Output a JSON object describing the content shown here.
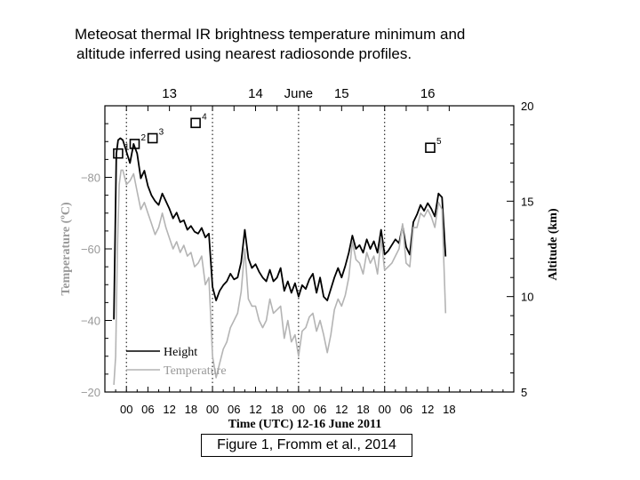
{
  "title_lines": [
    "Meteosat thermal IR brightness temperature minimum and",
    "altitude inferred using nearest radiosonde profiles."
  ],
  "caption": "Figure 1, Fromm et al., 2014",
  "colors": {
    "height": "#000000",
    "temperature": "#b4b4b4",
    "frame": "#000000"
  },
  "chart_data": {
    "type": "line",
    "xlabel": "Time (UTC) 12-16 June 2011",
    "xlim": [
      -6,
      108
    ],
    "x_tick_labels": [
      "00",
      "06",
      "12",
      "18",
      "00",
      "06",
      "12",
      "18",
      "00",
      "06",
      "12",
      "18",
      "00",
      "06",
      "12",
      "18"
    ],
    "x_ticks": [
      0,
      6,
      12,
      18,
      24,
      30,
      36,
      42,
      48,
      54,
      60,
      66,
      72,
      78,
      84,
      90
    ],
    "top_labels": [
      {
        "text": "13",
        "x": 12
      },
      {
        "text": "14",
        "x": 36
      },
      {
        "text": "June",
        "x": 48
      },
      {
        "text": "15",
        "x": 60
      },
      {
        "text": "16",
        "x": 84
      }
    ],
    "day_boundaries": [
      0,
      24,
      48,
      72
    ],
    "left_axis": {
      "label": "Temperature (ºC)",
      "lim": [
        -20,
        -100
      ],
      "ticks": [
        -20,
        -40,
        -60,
        -80
      ],
      "tick_labels": [
        "−20",
        "−40",
        "−60",
        "−80"
      ]
    },
    "right_axis": {
      "label": "Altitude (km)",
      "lim": [
        5,
        20
      ],
      "ticks": [
        5,
        10,
        15,
        20
      ],
      "tick_labels": [
        "5",
        "10",
        "15",
        "20"
      ]
    },
    "legend": {
      "placement": "bottom-left",
      "entries": [
        "Height",
        "Temperature"
      ]
    },
    "markers": [
      {
        "label": "1",
        "x": -2.3,
        "altitude": 17.5
      },
      {
        "label": "2",
        "x": 2.3,
        "altitude": 18.0
      },
      {
        "label": "3",
        "x": 7.3,
        "altitude": 18.3
      },
      {
        "label": "4",
        "x": 19.3,
        "altitude": 19.1
      },
      {
        "label": "5",
        "x": 84.7,
        "altitude": 17.8
      }
    ],
    "series": [
      {
        "name": "Height",
        "axis": "right",
        "x": [
          -3.5,
          -3.2,
          -2.8,
          -2.3,
          -1.7,
          -1,
          0,
          1,
          2,
          3,
          4,
          5,
          6,
          7,
          8,
          9,
          10,
          11,
          12,
          13,
          14,
          15,
          16,
          17,
          18,
          19,
          20,
          21,
          22,
          23,
          24,
          25,
          26,
          27,
          28,
          29,
          30,
          31,
          32,
          33,
          34,
          35,
          36,
          37,
          38,
          39,
          40,
          41,
          42,
          43,
          44,
          45,
          46,
          47,
          48,
          49,
          50,
          51,
          52,
          53,
          54,
          55,
          56,
          57,
          58,
          59,
          60,
          61,
          62,
          63,
          64,
          65,
          66,
          67,
          68,
          69,
          70,
          71,
          72,
          73,
          74,
          75,
          76,
          77,
          78,
          79,
          80,
          81,
          82,
          83,
          84,
          85,
          86,
          87,
          88,
          89
        ],
        "y": [
          8.8,
          12.5,
          17.5,
          18.2,
          18.3,
          18.2,
          17.6,
          17.0,
          18.0,
          17.5,
          16.2,
          16.6,
          15.8,
          15.3,
          15.0,
          14.8,
          15.4,
          15.0,
          14.6,
          14.1,
          14.4,
          13.9,
          14.0,
          13.5,
          13.7,
          13.4,
          13.3,
          13.6,
          13.1,
          13.3,
          10.5,
          9.8,
          10.3,
          10.6,
          10.8,
          11.2,
          10.9,
          11.0,
          11.8,
          13.5,
          12.0,
          11.5,
          11.7,
          11.3,
          11.0,
          10.8,
          11.4,
          10.8,
          11.0,
          11.5,
          10.3,
          10.8,
          10.2,
          10.7,
          10.0,
          10.6,
          10.4,
          10.9,
          11.2,
          10.2,
          11.0,
          10.0,
          9.8,
          10.4,
          11.0,
          11.5,
          11.0,
          11.6,
          12.3,
          13.2,
          12.5,
          12.7,
          12.3,
          13.0,
          12.5,
          12.9,
          12.3,
          13.5,
          12.2,
          12.4,
          12.7,
          13.0,
          12.8,
          13.7,
          12.6,
          12.2,
          13.9,
          14.3,
          14.8,
          14.5,
          14.9,
          14.6,
          14.2,
          15.4,
          15.2,
          12.1
        ]
      },
      {
        "name": "Temperature",
        "axis": "left",
        "x": [
          -3.5,
          -3.0,
          -2.5,
          -2,
          -1.5,
          -1,
          0,
          1,
          2,
          3,
          4,
          5,
          6,
          7,
          8,
          9,
          10,
          11,
          12,
          13,
          14,
          15,
          16,
          17,
          18,
          19,
          20,
          21,
          22,
          23,
          24,
          25,
          26,
          27,
          28,
          29,
          30,
          31,
          32,
          33,
          34,
          35,
          36,
          37,
          38,
          39,
          40,
          41,
          42,
          43,
          44,
          45,
          46,
          47,
          48,
          49,
          50,
          51,
          52,
          53,
          54,
          55,
          56,
          57,
          58,
          59,
          60,
          61,
          62,
          63,
          64,
          65,
          66,
          67,
          68,
          69,
          70,
          71,
          72,
          73,
          74,
          75,
          76,
          77,
          78,
          79,
          80,
          81,
          82,
          83,
          84,
          85,
          86,
          87,
          88,
          89
        ],
        "y": [
          -22,
          -30,
          -60,
          -78,
          -82,
          -82,
          -78,
          -79,
          -81,
          -76,
          -71,
          -73,
          -70,
          -67,
          -64,
          -66,
          -70,
          -66,
          -63,
          -60,
          -62,
          -59,
          -61,
          -58,
          -59,
          -55,
          -56,
          -58,
          -50,
          -52,
          -30,
          -24,
          -28,
          -32,
          -34,
          -38,
          -40,
          -42,
          -48,
          -60,
          -46,
          -44,
          -44,
          -40,
          -38,
          -40,
          -46,
          -42,
          -43,
          -44,
          -35,
          -40,
          -34,
          -36,
          -30,
          -37,
          -38,
          -41,
          -42,
          -37,
          -40,
          -36,
          -31,
          -36,
          -43,
          -46,
          -44,
          -47,
          -52,
          -62,
          -57,
          -56,
          -53,
          -59,
          -56,
          -58,
          -53,
          -63,
          -54,
          -55,
          -56,
          -58,
          -60,
          -67,
          -56,
          -55,
          -66,
          -66,
          -70,
          -69,
          -71,
          -69,
          -66,
          -73,
          -71,
          -42
        ]
      }
    ]
  }
}
